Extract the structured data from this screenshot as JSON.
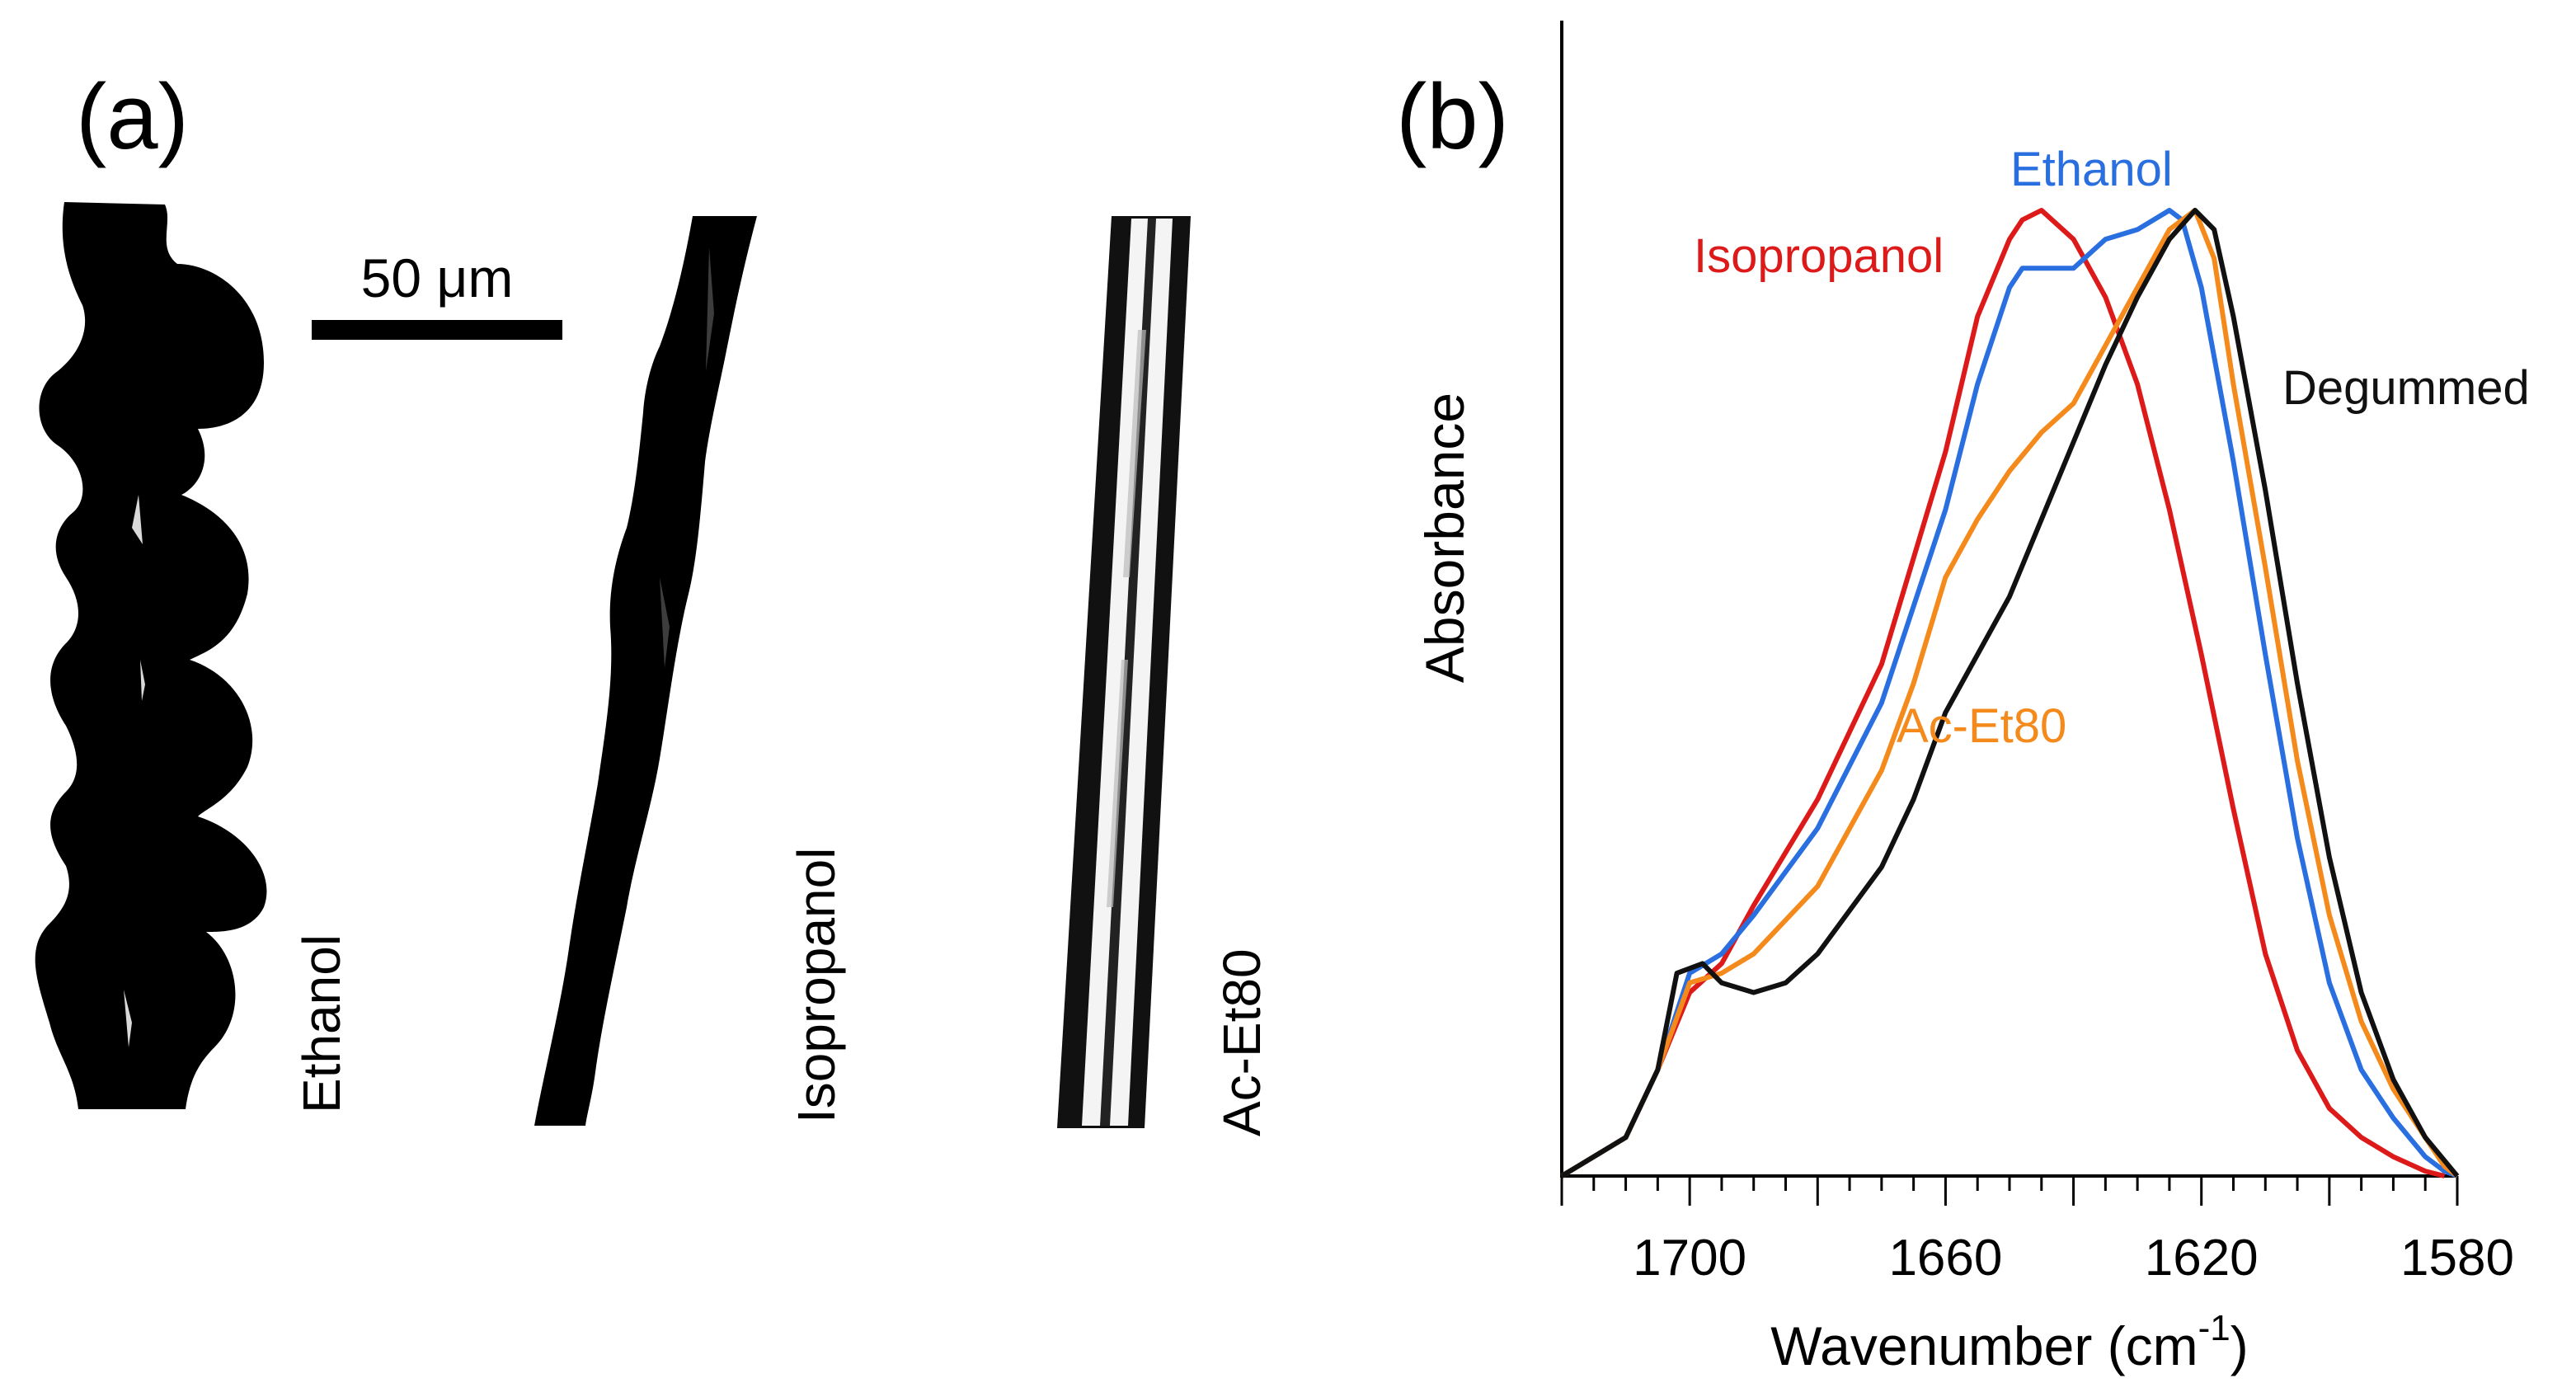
{
  "panel_a": {
    "label": "(a)",
    "scale_bar": "50 μm",
    "fibers": [
      {
        "name": "Ethanol",
        "label": "Ethanol"
      },
      {
        "name": "Isopropanol",
        "label": "Isopropanol"
      },
      {
        "name": "Ac-Et80",
        "label": "Ac-Et80"
      }
    ]
  },
  "panel_b": {
    "label": "(b)",
    "sup": "-1",
    "x_title_main": "Wavenumber (cm",
    "x_title_close": ")"
  },
  "chart_data": {
    "type": "line",
    "title": "",
    "xlabel": "Wavenumber (cm-1)",
    "ylabel": "Absorbance",
    "xlim": [
      1720,
      1580
    ],
    "ylim": [
      0,
      1.0
    ],
    "x_reversed": true,
    "xticks": [
      1700,
      1660,
      1620,
      1580
    ],
    "series": [
      {
        "name": "Isopropanol",
        "color": "#dd1a1a",
        "x": [
          1720,
          1710,
          1705,
          1700,
          1695,
          1690,
          1680,
          1670,
          1660,
          1655,
          1650,
          1648,
          1645,
          1640,
          1635,
          1630,
          1625,
          1620,
          1615,
          1610,
          1605,
          1600,
          1595,
          1590,
          1585,
          1582
        ],
        "y": [
          0.0,
          0.04,
          0.11,
          0.19,
          0.22,
          0.28,
          0.39,
          0.53,
          0.75,
          0.89,
          0.97,
          0.99,
          1.0,
          0.97,
          0.91,
          0.82,
          0.69,
          0.54,
          0.38,
          0.23,
          0.13,
          0.07,
          0.04,
          0.02,
          0.005,
          0.0
        ]
      },
      {
        "name": "Ethanol",
        "color": "#2a6fe0",
        "x": [
          1720,
          1710,
          1705,
          1700,
          1695,
          1690,
          1680,
          1670,
          1660,
          1655,
          1650,
          1648,
          1645,
          1640,
          1635,
          1630,
          1625,
          1623,
          1620,
          1615,
          1610,
          1605,
          1600,
          1595,
          1590,
          1585,
          1582,
          1580
        ],
        "y": [
          0.0,
          0.04,
          0.11,
          0.21,
          0.23,
          0.27,
          0.36,
          0.49,
          0.69,
          0.82,
          0.92,
          0.94,
          0.94,
          0.94,
          0.97,
          0.98,
          1.0,
          0.99,
          0.92,
          0.74,
          0.54,
          0.35,
          0.2,
          0.11,
          0.06,
          0.02,
          0.005,
          0.0
        ]
      },
      {
        "name": "Ac-Et80",
        "color": "#f58a1c",
        "x": [
          1720,
          1710,
          1705,
          1700,
          1695,
          1690,
          1680,
          1670,
          1665,
          1660,
          1655,
          1650,
          1645,
          1640,
          1635,
          1630,
          1625,
          1621,
          1618,
          1615,
          1610,
          1605,
          1600,
          1595,
          1590,
          1585,
          1582,
          1580
        ],
        "y": [
          0.0,
          0.04,
          0.11,
          0.2,
          0.21,
          0.23,
          0.3,
          0.42,
          0.51,
          0.62,
          0.68,
          0.73,
          0.77,
          0.8,
          0.86,
          0.92,
          0.98,
          1.0,
          0.95,
          0.82,
          0.63,
          0.43,
          0.27,
          0.16,
          0.09,
          0.04,
          0.01,
          0.0
        ]
      },
      {
        "name": "Degummed",
        "color": "#111111",
        "x": [
          1720,
          1710,
          1705,
          1702,
          1698,
          1695,
          1690,
          1685,
          1680,
          1670,
          1665,
          1660,
          1655,
          1650,
          1645,
          1640,
          1635,
          1630,
          1625,
          1621,
          1618,
          1615,
          1610,
          1605,
          1600,
          1595,
          1590,
          1585,
          1580
        ],
        "y": [
          0.0,
          0.04,
          0.11,
          0.21,
          0.22,
          0.2,
          0.19,
          0.2,
          0.23,
          0.32,
          0.39,
          0.48,
          0.54,
          0.6,
          0.68,
          0.76,
          0.84,
          0.91,
          0.97,
          1.0,
          0.98,
          0.89,
          0.71,
          0.51,
          0.33,
          0.19,
          0.1,
          0.04,
          0.0
        ]
      }
    ],
    "annotations": [
      {
        "series": "Isopropanol",
        "text": "Isopropanol",
        "color": "#dd1a1a"
      },
      {
        "series": "Ethanol",
        "text": "Ethanol",
        "color": "#2a6fe0"
      },
      {
        "series": "Ac-Et80",
        "text": "Ac-Et80",
        "color": "#f58a1c"
      },
      {
        "series": "Degummed",
        "text": "Degummed",
        "color": "#111111"
      }
    ]
  }
}
